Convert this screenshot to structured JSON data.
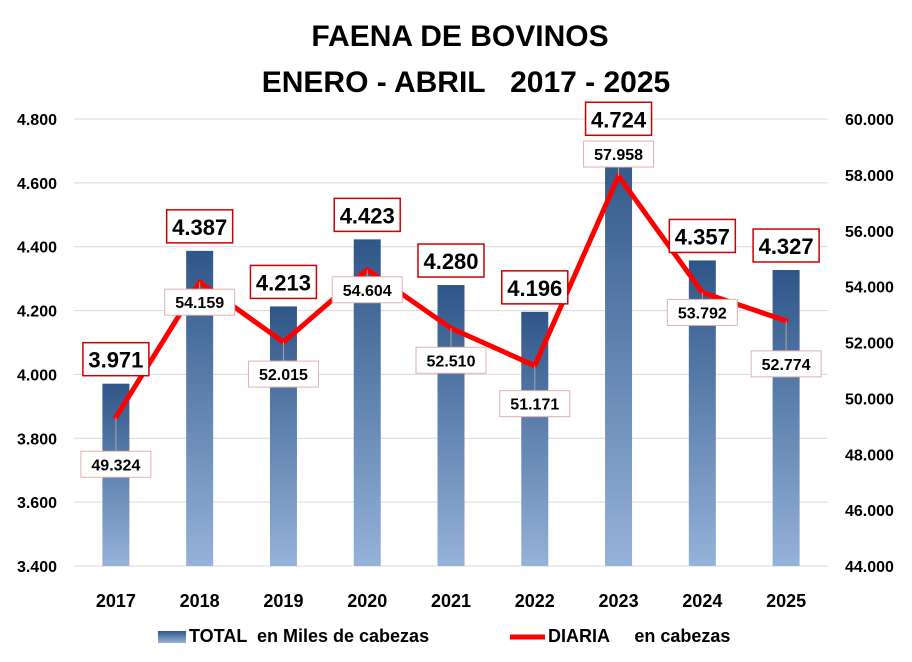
{
  "chart_data": {
    "type": "bar",
    "title": "FAENA DE BOVINOS",
    "subtitle": "ENERO - ABRIL   2017 - 2025",
    "categories": [
      "2017",
      "2018",
      "2019",
      "2020",
      "2021",
      "2022",
      "2023",
      "2024",
      "2025"
    ],
    "series": [
      {
        "name": "TOTAL  en Miles de cabezas",
        "type": "bar",
        "axis": "left",
        "values": [
          3971,
          4387,
          4213,
          4423,
          4280,
          4196,
          4724,
          4357,
          4327
        ],
        "labels": [
          "3.971",
          "4.387",
          "4.213",
          "4.423",
          "4.280",
          "4.196",
          "4.724",
          "4.357",
          "4.327"
        ]
      },
      {
        "name": "DIARIA     en cabezas",
        "type": "line",
        "axis": "right",
        "values": [
          49324,
          54159,
          52015,
          54604,
          52510,
          51171,
          57958,
          53792,
          52774
        ],
        "labels": [
          "49.324",
          "54.159",
          "52.015",
          "54.604",
          "52.510",
          "51.171",
          "57.958",
          "53.792",
          "52.774"
        ]
      }
    ],
    "left_axis": {
      "ylim": [
        3400,
        4800
      ],
      "ticks": [
        "3.400",
        "3.600",
        "3.800",
        "4.000",
        "4.200",
        "4.400",
        "4.600",
        "4.800"
      ]
    },
    "right_axis": {
      "ylim": [
        44000,
        60000
      ],
      "ticks": [
        "44.000",
        "46.000",
        "48.000",
        "50.000",
        "52.000",
        "54.000",
        "56.000",
        "58.000",
        "60.000"
      ]
    },
    "grid": true,
    "legend_position": "bottom",
    "colors": {
      "bar_top": "#2f5688",
      "bar_bottom": "#95b2d9",
      "line": "#ff0000",
      "label_border": "#cc0000",
      "grid": "#d9d9d9"
    }
  }
}
